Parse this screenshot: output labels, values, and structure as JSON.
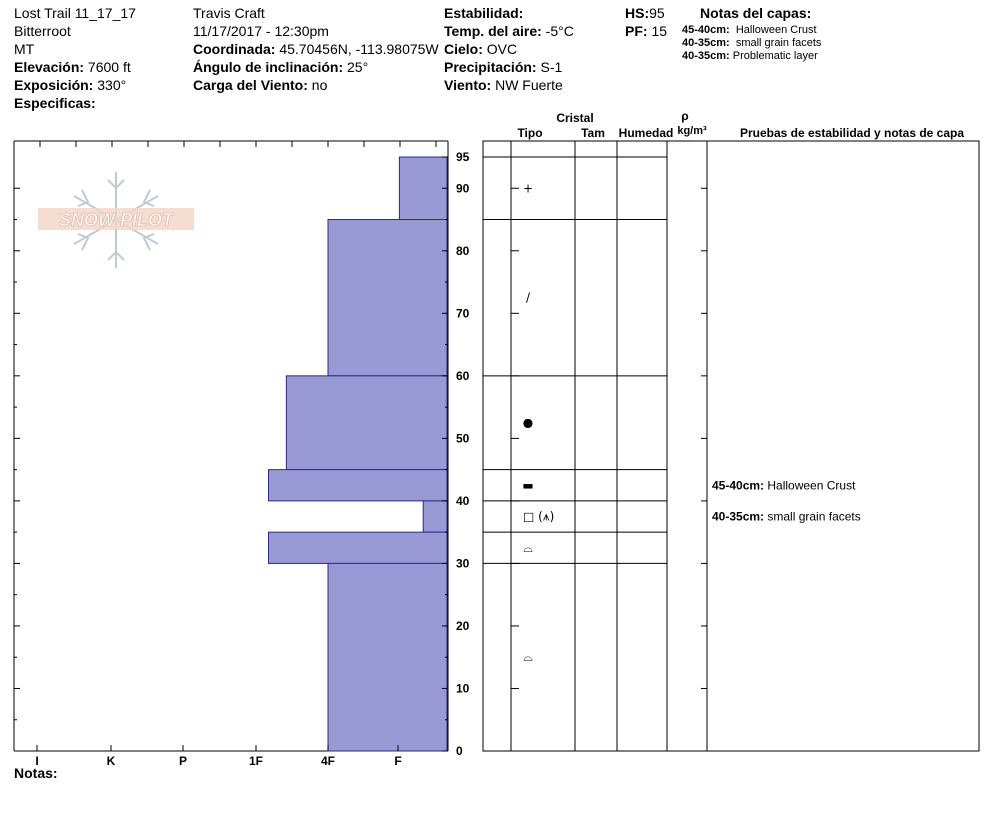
{
  "header": {
    "col1": {
      "title": "Lost Trail 11_17_17",
      "range": "Bitterroot",
      "state": "MT",
      "elevation_label": "Elevación:",
      "elevation_value": "7600 ft",
      "aspect_label": "Exposición:",
      "aspect_value": "330°",
      "specifics_label": "Especificas:"
    },
    "col2": {
      "observer": "Travis  Craft",
      "datetime": "11/17/2017 - 12:30pm",
      "coord_label": "Coordinada:",
      "coord_value": "45.70456N, -113.98075W",
      "slope_label": "Ángulo de inclinación:",
      "slope_value": "25°",
      "wind_load_label": "Carga del Viento:",
      "wind_load_value": "no"
    },
    "col3": {
      "stability_label": "Estabilidad:",
      "air_temp_label": "Temp. del aire:",
      "air_temp_value": "-5°C",
      "sky_label": "Cielo:",
      "sky_value": "OVC",
      "precip_label": "Precipitación:",
      "precip_value": "S-1",
      "wind_label": "Viento:",
      "wind_value": "NW Fuerte"
    },
    "col4": {
      "hs_label": "HS:",
      "hs_value": "95",
      "pf_label": "PF:",
      "pf_value": "15"
    },
    "layer_notes": {
      "title": "Notas del capas:",
      "items": [
        {
          "range": "45-40cm:",
          "text": "Halloween Crust"
        },
        {
          "range": "40-35cm:",
          "text": "small grain facets"
        },
        {
          "range": "40-35cm:",
          "text": "Problematic layer"
        }
      ]
    }
  },
  "logo_text": "SNOW PILOT",
  "table_headers": {
    "cristal": "Cristal",
    "tipo": "Tipo",
    "tam": "Tam",
    "humedad": "Humedad",
    "rho": "ρ",
    "density_unit": "kg/m³",
    "stability_col": "Pruebas de estabilidad y notas de capa"
  },
  "chart_data": {
    "type": "bar",
    "orientation": "horizontal-step",
    "ylabel": "",
    "ylim": [
      0,
      95
    ],
    "y_ticks": [
      0,
      10,
      20,
      30,
      40,
      50,
      60,
      70,
      80,
      90,
      95
    ],
    "hardness_scale": [
      "I",
      "K",
      "P",
      "1F",
      "4F",
      "F"
    ],
    "hardness_values": {
      "F": 1,
      "4F": 2,
      "1F": 3,
      "P": 4,
      "K": 5,
      "I": 6
    },
    "layers": [
      {
        "top": 95,
        "bottom": 85,
        "hardness": "F",
        "hardness_value": 0.8,
        "grain": "+"
      },
      {
        "top": 85,
        "bottom": 60,
        "hardness": "4F",
        "hardness_value": 2.0,
        "grain": "/"
      },
      {
        "top": 60,
        "bottom": 45,
        "hardness": "4F+",
        "hardness_value": 2.7,
        "grain": "●"
      },
      {
        "top": 45,
        "bottom": 40,
        "hardness": "1F",
        "hardness_value": 3.0,
        "grain": "▬"
      },
      {
        "top": 40,
        "bottom": 35,
        "hardness": "F",
        "hardness_value": 0.4,
        "grain": "□ (⩚)"
      },
      {
        "top": 35,
        "bottom": 30,
        "hardness": "1F",
        "hardness_value": 3.0,
        "grain": "⌓"
      },
      {
        "top": 30,
        "bottom": 0,
        "hardness": "4F",
        "hardness_value": 2.0,
        "grain": "⌓"
      }
    ],
    "layer_comments": [
      {
        "top": 45,
        "bottom": 40,
        "range": "45-40cm:",
        "text": "Halloween Crust"
      },
      {
        "top": 40,
        "bottom": 35,
        "range": "40-35cm:",
        "text": "small grain facets"
      }
    ]
  },
  "footer": {
    "notes_label": "Notas:"
  }
}
